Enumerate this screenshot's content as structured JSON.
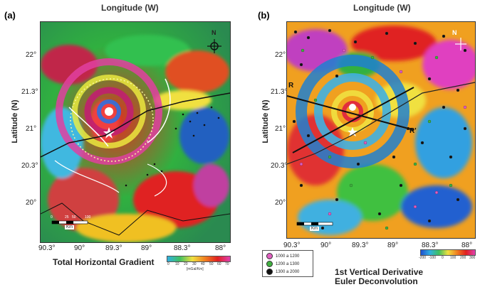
{
  "panel_a": {
    "letter": "(a)",
    "top_title": "Longitude (W)",
    "ylabel": "Latitude (N)",
    "lat_ticks": [
      "22°",
      "21.3°",
      "21°",
      "20.3°",
      "20°"
    ],
    "lon_ticks": [
      "90.3°",
      "90°",
      "89.3°",
      "89°",
      "88.3°",
      "88°"
    ],
    "caption": "Total Horizontal Gradient",
    "colorbar_ticks": [
      "0",
      "10",
      "20",
      "30",
      "40",
      "50",
      "60",
      "70"
    ],
    "colorbar_unit": "[mGal/Km]",
    "north": "N",
    "scale_km": "Km",
    "scale_ticks": [
      "0",
      "25",
      "50",
      "100"
    ]
  },
  "panel_b": {
    "letter": "(b)",
    "top_title": "Longitude (W)",
    "ylabel": "Latitude (N)",
    "lat_ticks": [
      "22°",
      "21.3°",
      "21°",
      "20.3°",
      "20°"
    ],
    "lon_ticks": [
      "90.3°",
      "90°",
      "89.3°",
      "89°",
      "88.3°",
      "88°"
    ],
    "caption_line1": "1st Vertical Derivative",
    "caption_line2": "Euler Deconvolution",
    "colorbar_ticks": [
      "-200",
      "-100",
      "0",
      "100",
      "200",
      "300"
    ],
    "north": "N",
    "scale_km": "Km",
    "profile_R": "R",
    "profile_R2": "R'",
    "legend": [
      {
        "label": "1000 a 1200",
        "color": "#e060c0"
      },
      {
        "label": "1200 a 1300",
        "color": "#40b040"
      },
      {
        "label": "1300 a 2000",
        "color": "#111111"
      }
    ]
  }
}
